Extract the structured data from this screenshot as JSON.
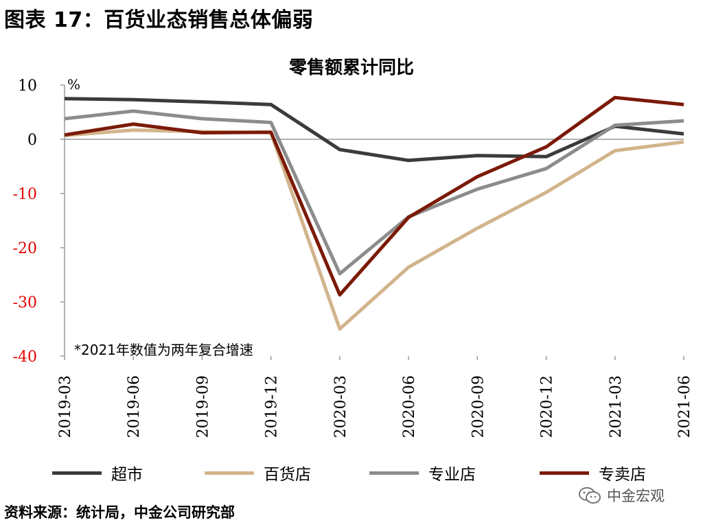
{
  "figure_title": "图表 17：百货业态销售总体偏弱",
  "source": "资料来源：统计局，中金公司研究部",
  "watermark": "中金宏观",
  "chart_data": {
    "type": "line",
    "title": "零售额累计同比",
    "unit_label": "%",
    "annotation": "*2021年数值为两年复合增速",
    "categories": [
      "2019-03",
      "2019-06",
      "2019-09",
      "2019-12",
      "2020-03",
      "2020-06",
      "2020-09",
      "2020-12",
      "2021-03",
      "2021-06"
    ],
    "ylim": [
      -40,
      10
    ],
    "yticks": [
      10,
      0,
      -10,
      -20,
      -30,
      -40
    ],
    "grid": false,
    "legend_position": "bottom",
    "series": [
      {
        "name": "超市",
        "color": "#3b3b3b",
        "values": [
          7.5,
          7.3,
          6.9,
          6.4,
          -1.9,
          -3.9,
          -3.0,
          -3.2,
          2.4,
          1.0
        ]
      },
      {
        "name": "百货店",
        "color": "#d2b48c",
        "values": [
          0.7,
          1.7,
          1.4,
          1.2,
          -35.0,
          -23.6,
          -16.4,
          -9.8,
          -2.1,
          -0.5
        ]
      },
      {
        "name": "专业店",
        "color": "#8c8c8c",
        "values": [
          3.8,
          5.2,
          3.8,
          3.1,
          -24.8,
          -14.3,
          -9.2,
          -5.4,
          2.6,
          3.4
        ]
      },
      {
        "name": "专卖店",
        "color": "#7b1a08",
        "values": [
          0.8,
          2.8,
          1.2,
          1.3,
          -28.7,
          -14.4,
          -6.9,
          -1.4,
          7.7,
          6.4
        ]
      }
    ],
    "colors": {
      "positive_tick": "#000000",
      "negative_tick": "#e60000",
      "axis": "#999999"
    }
  }
}
